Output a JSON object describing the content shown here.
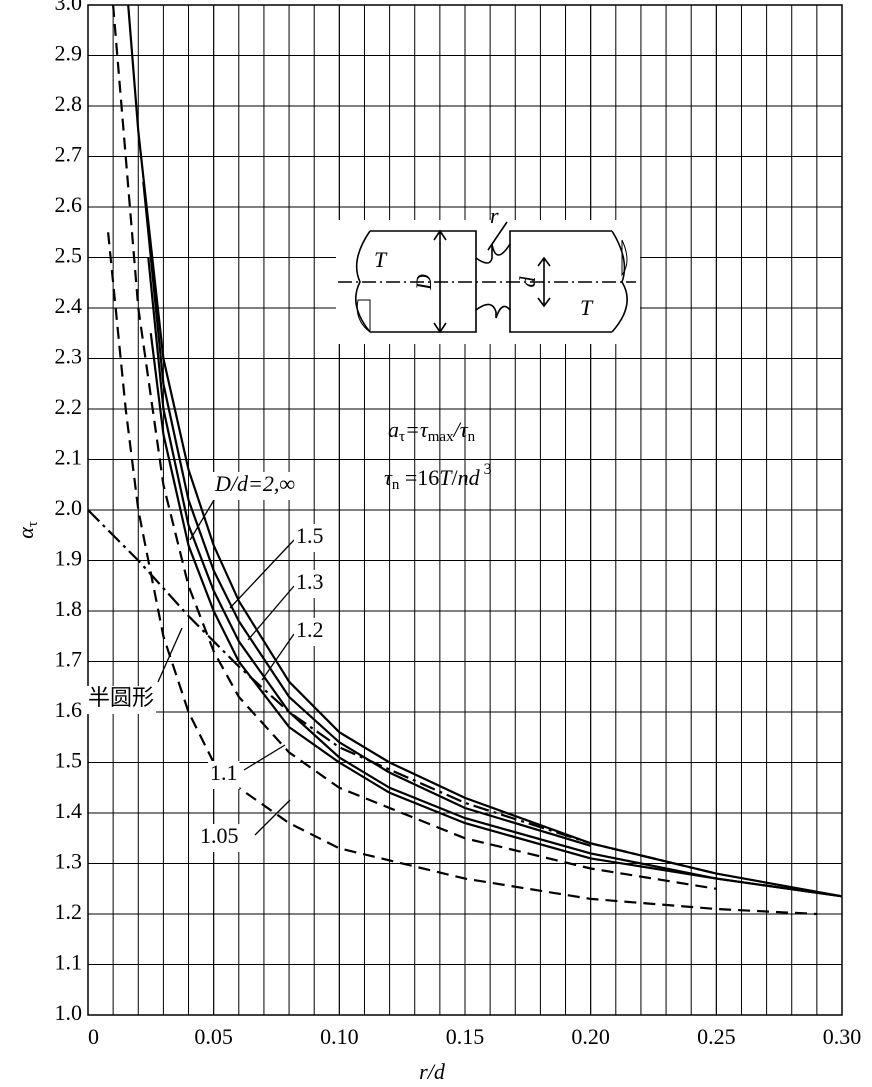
{
  "chart_data": {
    "type": "line",
    "x_label": "r/d",
    "y_label": [
      "α",
      "τ"
    ],
    "formula_1": [
      "a",
      "τ",
      "=τ",
      "max",
      "/τ",
      "n"
    ],
    "formula_2": [
      "τ",
      "n",
      " =16",
      "T",
      "/",
      "nd",
      " 3"
    ],
    "xlim": [
      0,
      0.3
    ],
    "ylim": [
      1.0,
      3.0
    ],
    "xticks": [
      0,
      0.05,
      {
        "value": 0.1,
        "label": "0.10"
      },
      0.15,
      {
        "value": 0.2,
        "label": "0.20"
      },
      0.25,
      {
        "value": 0.3,
        "label": "0.30"
      }
    ],
    "xgrid": [
      0.01,
      0.02,
      0.03,
      0.04,
      0.05,
      0.06,
      0.07,
      0.08,
      0.09,
      0.1,
      0.11,
      0.12,
      0.13,
      0.14,
      0.15,
      0.16,
      0.17,
      0.18,
      0.19,
      0.2,
      0.21,
      0.22,
      0.23,
      0.24,
      0.25,
      0.26,
      0.27,
      0.28,
      0.29
    ],
    "yticks": [
      {
        "value": 1.0,
        "label": "1.0"
      },
      1.1,
      1.2,
      1.3,
      1.4,
      1.5,
      1.6,
      1.7,
      1.8,
      1.9,
      {
        "value": 2.0,
        "label": "2.0"
      },
      2.1,
      2.2,
      2.3,
      2.4,
      2.5,
      2.6,
      2.7,
      2.8,
      2.9,
      {
        "value": 3.0,
        "label": "3.0"
      }
    ],
    "grid": true,
    "series": [
      {
        "name": "D/d=2,∞",
        "color": "#000000",
        "dash": "solid",
        "x": [
          0.016,
          0.02,
          0.03,
          0.04,
          0.05,
          0.06,
          0.08,
          0.1,
          0.12,
          0.15,
          0.2,
          0.25,
          0.3
        ],
        "values": [
          3.0,
          2.75,
          2.3,
          2.08,
          1.93,
          1.82,
          1.66,
          1.56,
          1.5,
          1.43,
          1.34,
          1.28,
          1.235
        ]
      },
      {
        "name": "1.5",
        "color": "#000000",
        "dash": "solid",
        "x": [
          0.022,
          0.03,
          0.04,
          0.05,
          0.06,
          0.08,
          0.1,
          0.12,
          0.15,
          0.2
        ],
        "values": [
          2.65,
          2.25,
          2.02,
          1.88,
          1.78,
          1.63,
          1.54,
          1.48,
          1.41,
          1.335
        ]
      },
      {
        "name": "1.3",
        "color": "#000000",
        "dash": "solid",
        "x": [
          0.024,
          0.03,
          0.04,
          0.05,
          0.06,
          0.08,
          0.1,
          0.12,
          0.15,
          0.2,
          0.25,
          0.3
        ],
        "values": [
          2.5,
          2.2,
          1.97,
          1.84,
          1.74,
          1.6,
          1.51,
          1.45,
          1.39,
          1.32,
          1.27,
          1.235
        ]
      },
      {
        "name": "1.2",
        "color": "#000000",
        "dash": "solid",
        "x": [
          0.025,
          0.03,
          0.04,
          0.05,
          0.06,
          0.08,
          0.1,
          0.12,
          0.15,
          0.2,
          0.25,
          0.3
        ],
        "values": [
          2.35,
          2.15,
          1.93,
          1.8,
          1.7,
          1.57,
          1.5,
          1.44,
          1.38,
          1.31,
          1.27,
          1.235
        ]
      },
      {
        "name": "1.1",
        "color": "#000000",
        "dash": "dashed",
        "x": [
          0.01,
          0.015,
          0.02,
          0.03,
          0.04,
          0.05,
          0.06,
          0.08,
          0.1,
          0.15,
          0.2,
          0.25
        ],
        "values": [
          3.0,
          2.7,
          2.4,
          2.05,
          1.85,
          1.72,
          1.63,
          1.52,
          1.45,
          1.35,
          1.29,
          1.25
        ]
      },
      {
        "name": "1.05",
        "color": "#000000",
        "dash": "dashed",
        "x": [
          0.008,
          0.015,
          0.02,
          0.03,
          0.04,
          0.05,
          0.06,
          0.08,
          0.1,
          0.15,
          0.2,
          0.25,
          0.29
        ],
        "values": [
          2.55,
          2.2,
          2.0,
          1.75,
          1.6,
          1.5,
          1.45,
          1.38,
          1.33,
          1.27,
          1.23,
          1.21,
          1.2
        ]
      },
      {
        "name": "半圆形",
        "color": "#000000",
        "dash": "dashdot",
        "x": [
          0,
          0.02,
          0.04,
          0.06,
          0.08,
          0.1,
          0.15,
          0.2,
          0.25
        ],
        "values": [
          2.0,
          1.9,
          1.79,
          1.69,
          1.6,
          1.53,
          1.42,
          1.34,
          1.28
        ]
      }
    ],
    "diagram": {
      "labels": [
        "T",
        "D",
        "r",
        "d",
        "T"
      ]
    }
  }
}
